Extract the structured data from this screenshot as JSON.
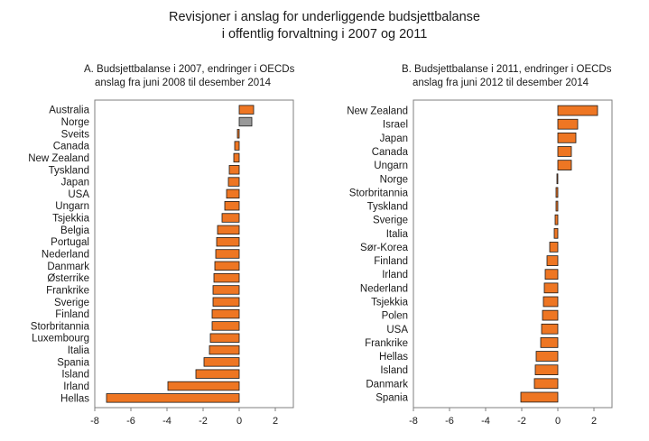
{
  "title_line1": "Revisjoner i anslag for underliggende budsjettbalanse",
  "title_line2": "i offentlig forvaltning i 2007 og 2011",
  "colors": {
    "bar": "#ee7623",
    "bar_highlight": "#999999",
    "bar_stroke": "#1a1a1a",
    "axis": "#7f7f7f"
  },
  "chart_data": [
    {
      "type": "bar",
      "orientation": "horizontal",
      "title_line1": "A.  Budsjettbalanse i 2007, endringer i OECDs",
      "title_line2": "anslag fra juni 2008 til desember 2014",
      "xlim": [
        -8,
        3
      ],
      "xticks": [
        -8,
        -6,
        -4,
        -2,
        0,
        2
      ],
      "highlight": [
        "Norge"
      ],
      "categories": [
        "Australia",
        "Norge",
        "Sveits",
        "Canada",
        "New Zealand",
        "Tyskland",
        "Japan",
        "USA",
        "Ungarn",
        "Tsjekkia",
        "Belgia",
        "Portugal",
        "Nederland",
        "Danmark",
        "Østerrike",
        "Frankrike",
        "Sverige",
        "Finland",
        "Storbritannia",
        "Luxembourg",
        "Italia",
        "Spania",
        "Island",
        "Irland",
        "Hellas"
      ],
      "values": [
        0.8,
        0.7,
        -0.1,
        -0.25,
        -0.3,
        -0.55,
        -0.6,
        -0.7,
        -0.8,
        -0.95,
        -1.2,
        -1.25,
        -1.3,
        -1.35,
        -1.4,
        -1.45,
        -1.45,
        -1.5,
        -1.5,
        -1.6,
        -1.65,
        -1.95,
        -2.4,
        -3.95,
        -7.35
      ]
    },
    {
      "type": "bar",
      "orientation": "horizontal",
      "title_line1": "B.  Budsjettbalanse i 2011, endringer i OECDs",
      "title_line2": "anslag fra juni 2012 til desember 2014",
      "xlim": [
        -8,
        3
      ],
      "xticks": [
        -8,
        -6,
        -4,
        -2,
        0,
        2
      ],
      "highlight": [],
      "categories": [
        "New Zealand",
        "Israel",
        "Japan",
        "Canada",
        "Ungarn",
        "Norge",
        "Storbritannia",
        "Tyskland",
        "Sverige",
        "Italia",
        "Sør-Korea",
        "Finland",
        "Irland",
        "Nederland",
        "Tsjekkia",
        "Polen",
        "USA",
        "Frankrike",
        "Hellas",
        "Island",
        "Danmark",
        "Spania"
      ],
      "values": [
        2.2,
        1.1,
        1.0,
        0.75,
        0.75,
        -0.05,
        -0.1,
        -0.1,
        -0.15,
        -0.2,
        -0.45,
        -0.6,
        -0.7,
        -0.75,
        -0.8,
        -0.85,
        -0.9,
        -0.95,
        -1.2,
        -1.25,
        -1.3,
        -2.05
      ]
    }
  ]
}
